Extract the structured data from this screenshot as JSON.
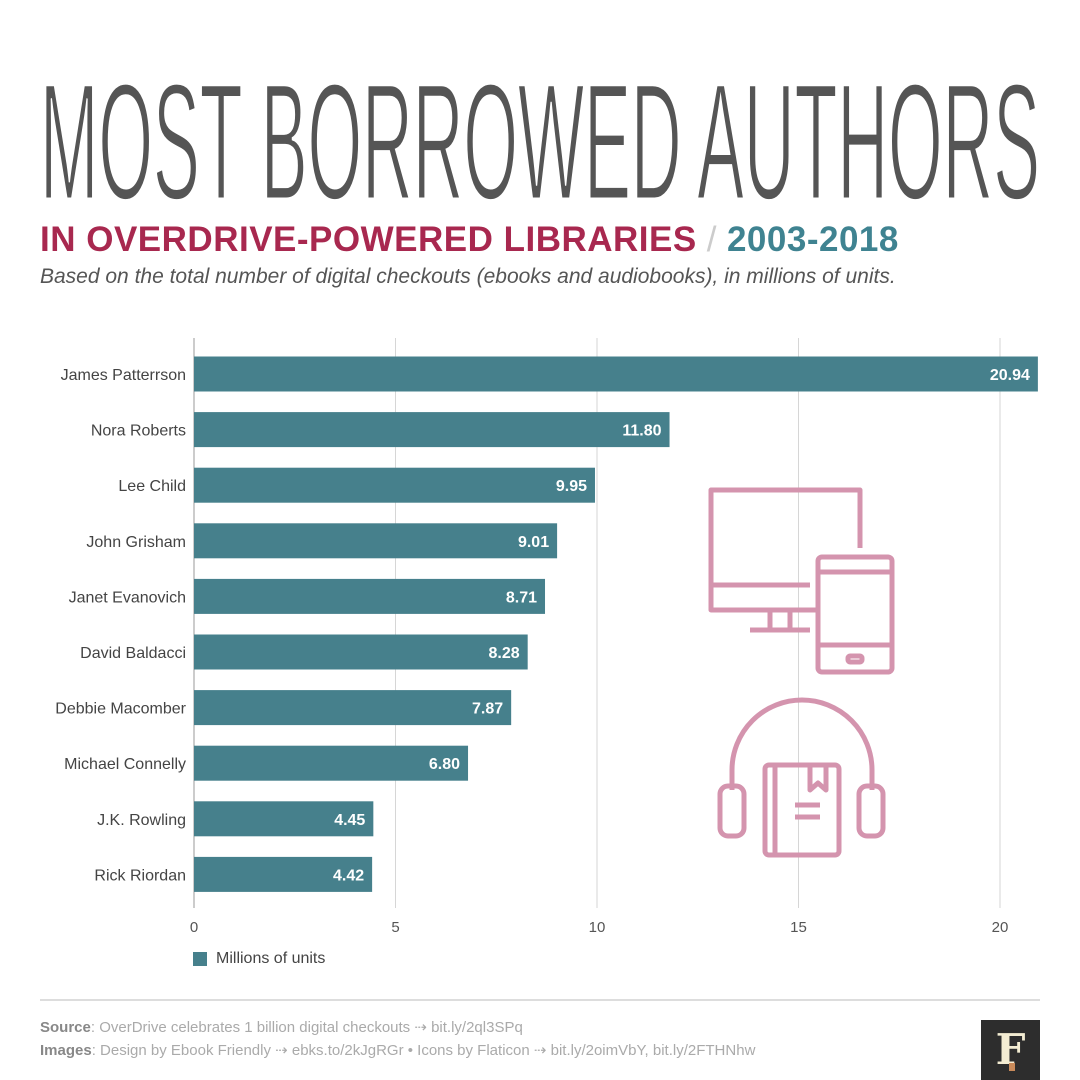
{
  "title": "MOST BORROWED AUTHORS",
  "subtitle": {
    "main": "IN OVERDRIVE-POWERED LIBRARIES",
    "separator": "/",
    "years": "2003-2018"
  },
  "description": "Based on the total number of digital checkouts (ebooks and audiobooks), in millions of units.",
  "colors": {
    "bar": "#46808c",
    "title": "#555555",
    "subtitle": "#a8284f",
    "years": "#3f8391",
    "icons": "#d494ae"
  },
  "icons": [
    "desktop-monitor-icon",
    "smartphone-icon",
    "headphones-audiobook-icon"
  ],
  "chart_data": {
    "type": "bar",
    "orientation": "horizontal",
    "categories": [
      "James Patterrson",
      "Nora Roberts",
      "Lee Child",
      "John Grisham",
      "Janet Evanovich",
      "David Baldacci",
      "Debbie Macomber",
      "Michael Connelly",
      "J.K. Rowling",
      "Rick Riordan"
    ],
    "series": [
      {
        "name": "Millions of units",
        "values": [
          20.94,
          11.8,
          9.95,
          9.01,
          8.71,
          8.28,
          7.87,
          6.8,
          4.45,
          4.42
        ]
      }
    ],
    "value_labels": [
      "20.94",
      "11.80",
      "9.95",
      "9.01",
      "8.71",
      "8.28",
      "7.87",
      "6.80",
      "4.45",
      "4.42"
    ],
    "xlim": [
      0,
      21
    ],
    "xticks": [
      "0",
      "5",
      "10",
      "15",
      "20"
    ],
    "grid": true,
    "legend": "bottom-left"
  },
  "footer": {
    "source_label": "Source",
    "source_text": ": OverDrive celebrates 1 billion digital checkouts ⇢ bit.ly/2ql3SPq",
    "images_label": "Images",
    "images_text": ": Design by Ebook Friendly ⇢ ebks.to/2kJgRGr • Icons by Flaticon ⇢ bit.ly/2oimVbY, bit.ly/2FTHNhw",
    "logo": "F"
  }
}
